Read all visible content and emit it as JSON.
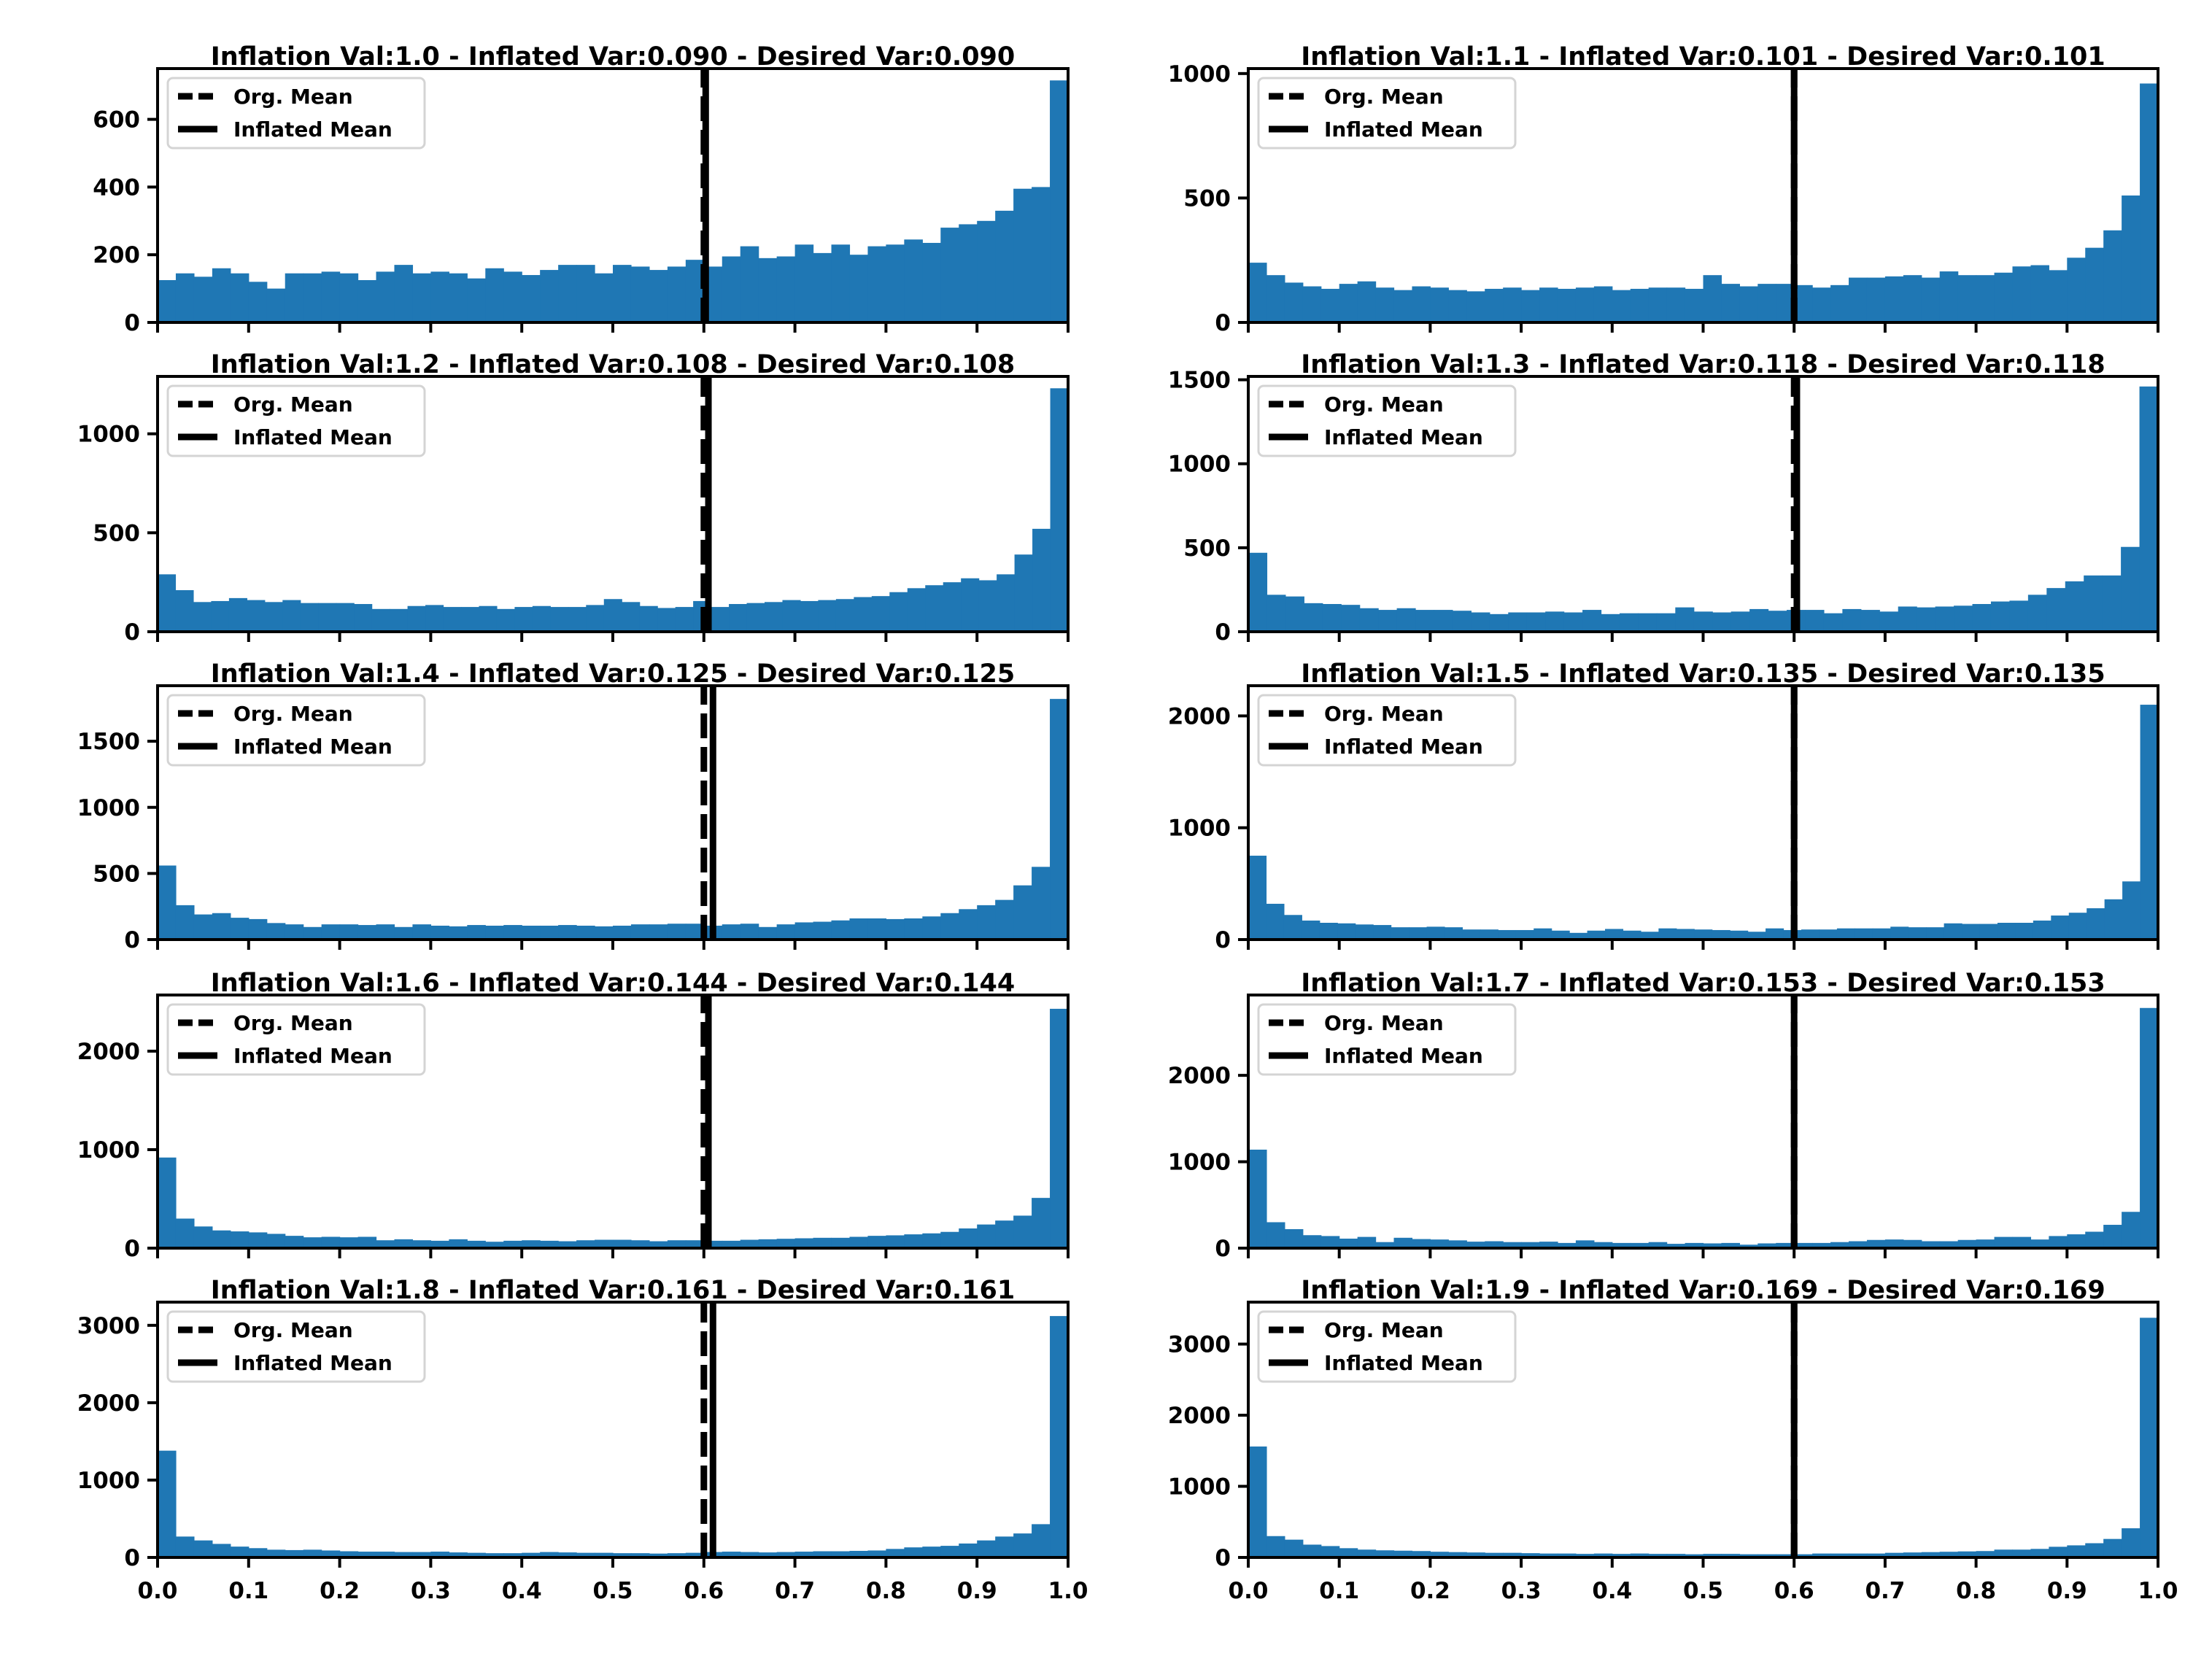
{
  "colors": {
    "bar": "#1f77b4",
    "mean_line": "#000000",
    "axes": "#000000"
  },
  "legend": {
    "org_mean": "Org. Mean",
    "inflated_mean": "Inflated Mean"
  },
  "chart_data": [
    {
      "type": "bar",
      "title": "Inflation Val:1.0 - Inflated Var:0.090 - Desired Var:0.090",
      "xlim": [
        0,
        1
      ],
      "ylim": [
        0,
        750
      ],
      "yticks": [
        0,
        200,
        400,
        600
      ],
      "xticks": [],
      "org_mean": 0.6,
      "inflated_mean": 0.602,
      "values": [
        125,
        145,
        135,
        160,
        145,
        120,
        100,
        145,
        145,
        150,
        145,
        125,
        150,
        170,
        145,
        150,
        145,
        130,
        160,
        150,
        140,
        155,
        170,
        170,
        145,
        170,
        165,
        155,
        165,
        185,
        165,
        195,
        225,
        190,
        195,
        230,
        205,
        230,
        200,
        225,
        230,
        245,
        235,
        280,
        290,
        300,
        330,
        395,
        400,
        715
      ]
    },
    {
      "type": "bar",
      "title": "Inflation Val:1.1 - Inflated Var:0.101 - Desired Var:0.101",
      "xlim": [
        0,
        1
      ],
      "ylim": [
        0,
        1020
      ],
      "yticks": [
        0,
        500,
        1000
      ],
      "xticks": [],
      "org_mean": 0.6,
      "inflated_mean": 0.6,
      "values": [
        240,
        190,
        160,
        145,
        135,
        155,
        165,
        140,
        130,
        145,
        140,
        130,
        125,
        135,
        140,
        130,
        140,
        135,
        140,
        145,
        130,
        135,
        140,
        140,
        135,
        190,
        155,
        145,
        155,
        155,
        150,
        140,
        150,
        180,
        180,
        185,
        190,
        180,
        205,
        190,
        190,
        200,
        225,
        230,
        210,
        260,
        300,
        370,
        510,
        960
      ]
    },
    {
      "type": "bar",
      "title": "Inflation Val:1.2 - Inflated Var:0.108 - Desired Var:0.108",
      "xlim": [
        0,
        1
      ],
      "ylim": [
        0,
        1290
      ],
      "yticks": [
        0,
        500,
        1000
      ],
      "xticks": [],
      "org_mean": 0.6,
      "inflated_mean": 0.605,
      "values": [
        290,
        210,
        150,
        155,
        170,
        160,
        150,
        160,
        145,
        145,
        145,
        140,
        115,
        115,
        130,
        135,
        125,
        125,
        130,
        115,
        125,
        130,
        125,
        125,
        135,
        165,
        150,
        130,
        120,
        125,
        155,
        125,
        140,
        145,
        150,
        160,
        155,
        160,
        165,
        175,
        180,
        200,
        220,
        235,
        250,
        270,
        260,
        290,
        390,
        520,
        1230
      ]
    },
    {
      "type": "bar",
      "title": "Inflation Val:1.3 - Inflated Var:0.118 - Desired Var:0.118",
      "xlim": [
        0,
        1
      ],
      "ylim": [
        0,
        1520
      ],
      "yticks": [
        0,
        500,
        1000,
        1500
      ],
      "xticks": [],
      "org_mean": 0.6,
      "inflated_mean": 0.603,
      "values": [
        470,
        220,
        210,
        170,
        165,
        160,
        140,
        130,
        140,
        130,
        130,
        125,
        115,
        105,
        115,
        115,
        120,
        115,
        130,
        105,
        110,
        110,
        110,
        145,
        120,
        115,
        120,
        135,
        125,
        130,
        130,
        110,
        135,
        130,
        120,
        150,
        145,
        150,
        155,
        165,
        180,
        185,
        220,
        260,
        300,
        335,
        335,
        505,
        1460
      ]
    },
    {
      "type": "bar",
      "title": "Inflation Val:1.4 - Inflated Var:0.125 - Desired Var:0.125",
      "xlim": [
        0,
        1
      ],
      "ylim": [
        0,
        1920
      ],
      "yticks": [
        0,
        500,
        1000,
        1500
      ],
      "xticks": [],
      "org_mean": 0.6,
      "inflated_mean": 0.61,
      "values": [
        560,
        260,
        190,
        200,
        165,
        155,
        125,
        115,
        95,
        115,
        115,
        110,
        115,
        95,
        115,
        105,
        100,
        110,
        105,
        110,
        105,
        105,
        110,
        105,
        100,
        105,
        115,
        115,
        120,
        120,
        105,
        115,
        120,
        95,
        115,
        130,
        135,
        145,
        160,
        160,
        155,
        160,
        175,
        200,
        230,
        260,
        300,
        410,
        550,
        1820
      ]
    },
    {
      "type": "bar",
      "title": "Inflation Val:1.5 - Inflated Var:0.135 - Desired Var:0.135",
      "xlim": [
        0,
        1
      ],
      "ylim": [
        0,
        2270
      ],
      "yticks": [
        0,
        1000,
        2000
      ],
      "xticks": [],
      "org_mean": 0.6,
      "inflated_mean": 0.6,
      "values": [
        750,
        320,
        220,
        170,
        150,
        145,
        135,
        130,
        110,
        110,
        115,
        110,
        90,
        90,
        85,
        85,
        100,
        80,
        60,
        80,
        95,
        80,
        70,
        100,
        95,
        90,
        85,
        80,
        70,
        100,
        85,
        90,
        90,
        100,
        100,
        100,
        115,
        110,
        110,
        145,
        140,
        140,
        150,
        150,
        170,
        215,
        240,
        280,
        360,
        520,
        2100
      ]
    },
    {
      "type": "bar",
      "title": "Inflation Val:1.6 - Inflated Var:0.144 - Desired Var:0.144",
      "xlim": [
        0,
        1
      ],
      "ylim": [
        0,
        2570
      ],
      "yticks": [
        0,
        1000,
        2000
      ],
      "xticks": [],
      "org_mean": 0.6,
      "inflated_mean": 0.605,
      "values": [
        920,
        300,
        220,
        180,
        170,
        160,
        145,
        125,
        110,
        115,
        110,
        115,
        80,
        90,
        80,
        75,
        90,
        75,
        65,
        75,
        80,
        75,
        70,
        80,
        85,
        85,
        80,
        70,
        80,
        80,
        75,
        75,
        85,
        90,
        95,
        100,
        105,
        105,
        115,
        125,
        130,
        140,
        150,
        165,
        200,
        240,
        280,
        330,
        510,
        2430
      ]
    },
    {
      "type": "bar",
      "title": "Inflation Val:1.7 - Inflated Var:0.153 - Desired Var:0.153",
      "xlim": [
        0,
        1
      ],
      "ylim": [
        0,
        2930
      ],
      "yticks": [
        0,
        1000,
        2000
      ],
      "xticks": [],
      "org_mean": 0.6,
      "inflated_mean": 0.6,
      "values": [
        1140,
        300,
        220,
        150,
        140,
        110,
        130,
        70,
        120,
        105,
        100,
        90,
        75,
        80,
        70,
        70,
        75,
        60,
        90,
        70,
        60,
        60,
        70,
        50,
        60,
        55,
        60,
        40,
        55,
        60,
        60,
        60,
        70,
        80,
        95,
        100,
        95,
        80,
        80,
        95,
        100,
        130,
        130,
        100,
        140,
        160,
        190,
        270,
        420,
        2780
      ]
    },
    {
      "type": "bar",
      "title": "Inflation Val:1.8 - Inflated Var:0.161 - Desired Var:0.161",
      "xlim": [
        0,
        1
      ],
      "ylim": [
        0,
        3300
      ],
      "yticks": [
        0,
        1000,
        2000,
        3000
      ],
      "xticks": [
        0.0,
        0.1,
        0.2,
        0.3,
        0.4,
        0.5,
        0.6,
        0.7,
        0.8,
        0.9,
        1.0
      ],
      "org_mean": 0.6,
      "inflated_mean": 0.61,
      "values": [
        1380,
        270,
        220,
        175,
        140,
        120,
        100,
        95,
        100,
        90,
        80,
        75,
        75,
        70,
        70,
        75,
        65,
        60,
        55,
        55,
        60,
        70,
        65,
        60,
        60,
        55,
        55,
        50,
        55,
        60,
        70,
        75,
        70,
        65,
        70,
        75,
        80,
        80,
        85,
        90,
        110,
        130,
        140,
        150,
        180,
        220,
        270,
        310,
        430,
        3120
      ]
    },
    {
      "type": "bar",
      "title": "Inflation Val:1.9 - Inflated Var:0.169 - Desired Var:0.169",
      "xlim": [
        0,
        1
      ],
      "ylim": [
        0,
        3590
      ],
      "yticks": [
        0,
        1000,
        2000,
        3000
      ],
      "xticks": [
        0.0,
        0.1,
        0.2,
        0.3,
        0.4,
        0.5,
        0.6,
        0.7,
        0.8,
        0.9,
        1.0
      ],
      "org_mean": 0.6,
      "inflated_mean": 0.6,
      "values": [
        1560,
        300,
        250,
        180,
        160,
        130,
        110,
        100,
        95,
        90,
        80,
        75,
        70,
        65,
        65,
        60,
        55,
        55,
        50,
        55,
        50,
        55,
        50,
        50,
        45,
        50,
        50,
        45,
        45,
        45,
        45,
        55,
        55,
        55,
        55,
        65,
        70,
        75,
        80,
        85,
        90,
        110,
        110,
        120,
        150,
        170,
        200,
        260,
        410,
        3370
      ]
    }
  ]
}
